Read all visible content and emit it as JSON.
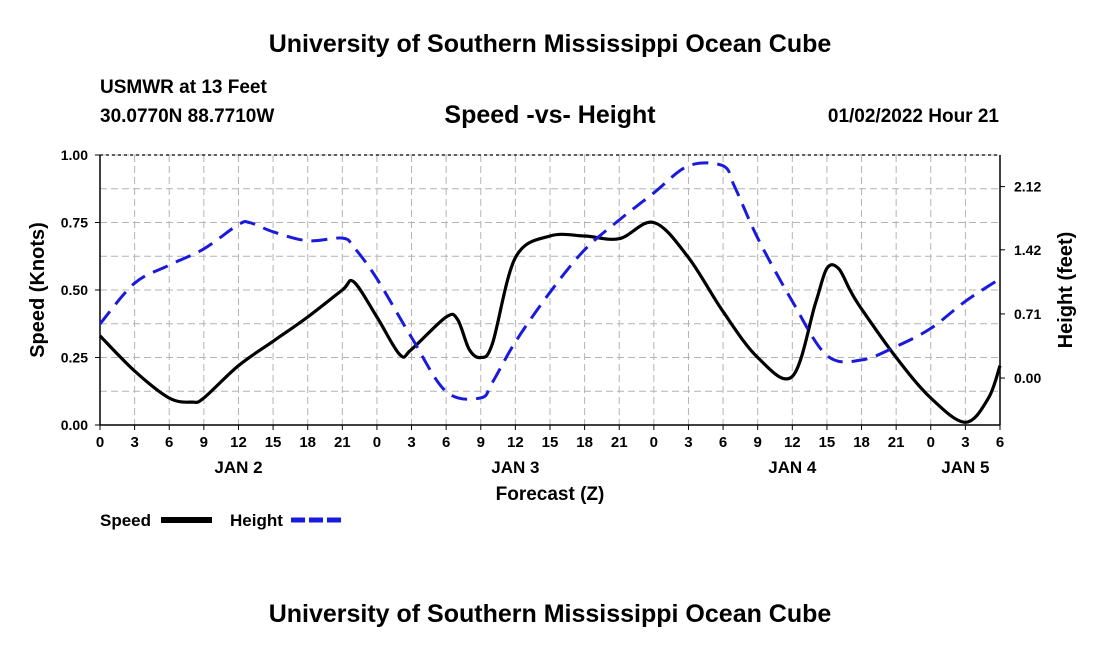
{
  "header": {
    "title": "University of Southern Mississippi Ocean Cube",
    "station": "USMWR at 13 Feet",
    "coords": "30.0770N  88.7710W",
    "chart_title": "Speed -vs- Height",
    "datetime": "01/02/2022 Hour 21"
  },
  "footer": {
    "title": "University of Southern Mississippi Ocean Cube"
  },
  "colors": {
    "speed": "#000000",
    "height": "#1a1adc",
    "grid": "#b4b4b4"
  },
  "chart_data": {
    "type": "line",
    "title": "Speed -vs- Height",
    "xlabel": "Forecast (Z)",
    "ylabel": "Speed (Knots)",
    "y2label": "Height (feet)",
    "x_range_hours": [
      0,
      78
    ],
    "x_tick_hours": [
      0,
      3,
      6,
      9,
      12,
      15,
      18,
      21,
      24,
      27,
      30,
      33,
      36,
      39,
      42,
      45,
      48,
      51,
      54,
      57,
      60,
      63,
      66,
      69,
      72,
      75,
      78
    ],
    "x_tick_labels": [
      "0",
      "3",
      "6",
      "9",
      "12",
      "15",
      "18",
      "21",
      "0",
      "3",
      "6",
      "9",
      "12",
      "15",
      "18",
      "21",
      "0",
      "3",
      "6",
      "9",
      "12",
      "15",
      "18",
      "21",
      "0",
      "3",
      "6"
    ],
    "date_labels": [
      {
        "label": "JAN 2",
        "hour": 12
      },
      {
        "label": "JAN 3",
        "hour": 36
      },
      {
        "label": "JAN 4",
        "hour": 60
      },
      {
        "label": "JAN 5",
        "hour": 75
      }
    ],
    "ylim": [
      0,
      1
    ],
    "y_ticks": [
      0,
      0.25,
      0.5,
      0.75,
      1
    ],
    "y_tick_labels": [
      "0.00",
      "0.25",
      "0.50",
      "0.75",
      "1.00"
    ],
    "y2lim": [
      -0.52,
      2.47
    ],
    "y2_ticks": [
      0,
      0.71,
      1.42,
      2.12
    ],
    "y2_tick_labels": [
      "0.00",
      "0.71",
      "1.42",
      "2.12"
    ],
    "grid": true,
    "legend_position": "bottom-left",
    "series": [
      {
        "name": "Speed",
        "axis": "left",
        "style": "solid",
        "x": [
          0,
          3,
          6,
          8,
          9,
          12,
          15,
          18,
          21,
          22,
          24,
          26,
          27,
          30,
          31,
          32,
          33,
          34,
          36,
          39,
          42,
          45,
          48,
          51,
          54,
          57,
          60,
          62,
          63,
          64,
          65,
          66,
          69,
          72,
          75,
          77,
          78
        ],
        "y": [
          0.33,
          0.2,
          0.1,
          0.085,
          0.1,
          0.22,
          0.31,
          0.4,
          0.5,
          0.53,
          0.4,
          0.26,
          0.28,
          0.4,
          0.39,
          0.28,
          0.25,
          0.3,
          0.62,
          0.7,
          0.7,
          0.69,
          0.75,
          0.62,
          0.42,
          0.25,
          0.18,
          0.45,
          0.58,
          0.58,
          0.5,
          0.43,
          0.25,
          0.1,
          0.01,
          0.1,
          0.22
        ]
      },
      {
        "name": "Height",
        "axis": "right",
        "style": "dashed",
        "x": [
          0,
          3,
          6,
          9,
          12,
          13,
          15,
          18,
          21,
          22,
          24,
          27,
          30,
          33,
          34,
          36,
          39,
          42,
          45,
          48,
          51,
          54,
          55,
          57,
          60,
          63,
          66,
          69,
          72,
          75,
          78
        ],
        "y": [
          0.6,
          1.05,
          1.25,
          1.43,
          1.7,
          1.72,
          1.62,
          1.52,
          1.55,
          1.45,
          1.1,
          0.45,
          -0.15,
          -0.22,
          -0.05,
          0.4,
          0.95,
          1.42,
          1.75,
          2.05,
          2.35,
          2.35,
          2.12,
          1.55,
          0.85,
          0.25,
          0.2,
          0.35,
          0.55,
          0.85,
          1.1
        ]
      }
    ]
  }
}
